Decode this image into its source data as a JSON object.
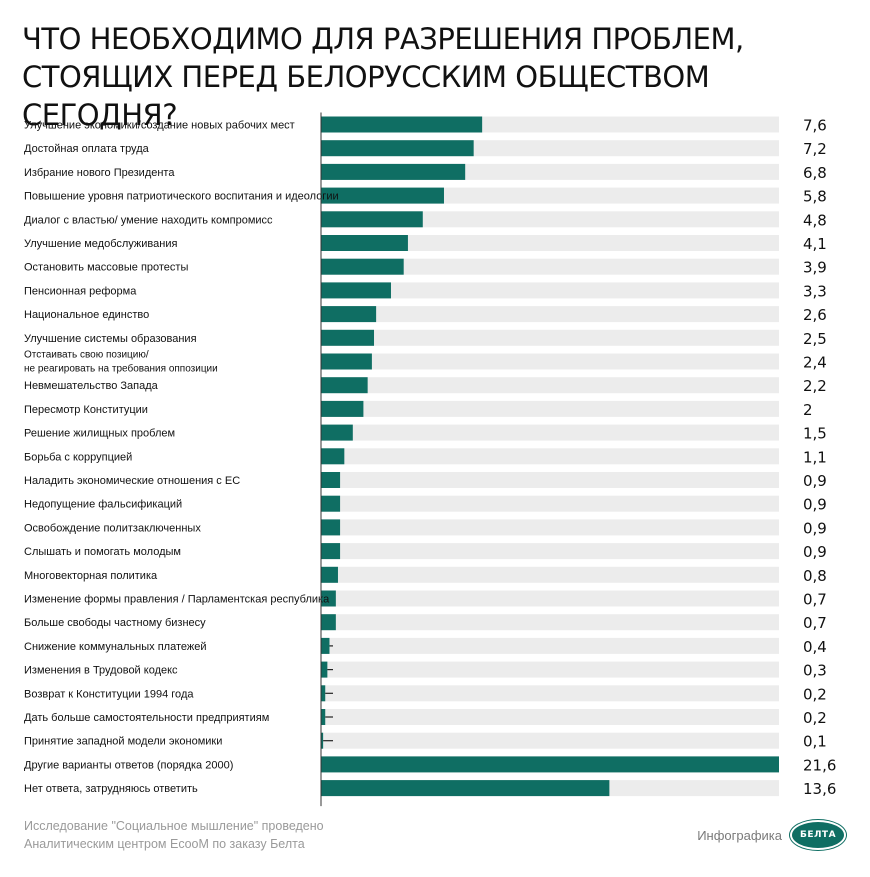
{
  "title_line1": "ЧТО НЕОБХОДИМО ДЛЯ РАЗРЕШЕНИЯ ПРОБЛЕМ,",
  "title_line2": "СТОЯЩИХ ПЕРЕД БЕЛОРУССКИМ ОБЩЕСТВОМ СЕГОДНЯ?",
  "footer": {
    "line1": "Исследование \"Социальное мышление\" проведено",
    "line2": "Аналитическим центром EcooM по заказу Белта",
    "brand_label": "Инфографика",
    "logo_text": "БЕЛТА"
  },
  "colors": {
    "bar": "#0f6e63",
    "track": "#ececec",
    "axis": "#333333"
  },
  "chart_data": {
    "type": "bar",
    "orientation": "horizontal",
    "xlim": [
      0,
      21.6
    ],
    "categories": [
      [
        "Улучшение экономики/создание новых рабочих мест"
      ],
      [
        "Достойная оплата труда"
      ],
      [
        "Избрание нового Президента"
      ],
      [
        "Повышение уровня патриотического воспитания и идеологии"
      ],
      [
        "Диалог с властью/ умение находить компромисс"
      ],
      [
        "Улучшение медобслуживания"
      ],
      [
        "Остановить массовые протесты"
      ],
      [
        "Пенсионная реформа"
      ],
      [
        "Национальное единство"
      ],
      [
        "Улучшение системы образования"
      ],
      [
        "Отстаивать свою позицию/",
        "не реагировать на требования оппозиции"
      ],
      [
        "Невмешательство Запада"
      ],
      [
        "Пересмотр Конституции"
      ],
      [
        "Решение жилищных проблем"
      ],
      [
        "Борьба с коррупцией"
      ],
      [
        "Наладить экономические отношения с ЕС"
      ],
      [
        "Недопущение фальсификаций"
      ],
      [
        "Освобождение политзаключенных"
      ],
      [
        "Слышать и помогать молодым"
      ],
      [
        "Многовекторная политика"
      ],
      [
        "Изменение формы правления / Парламентская республика"
      ],
      [
        "Больше свободы частному бизнесу"
      ],
      [
        "Снижение коммунальных платежей"
      ],
      [
        "Изменения в Трудовой кодекс"
      ],
      [
        "Возврат к Конституции 1994 года"
      ],
      [
        "Дать больше самостоятельности предприятиям"
      ],
      [
        "Принятие западной модели экономики"
      ],
      [
        "Другие варианты ответов (порядка 2000)"
      ],
      [
        "Нет ответа, затрудняюсь ответить"
      ]
    ],
    "values": [
      7.6,
      7.2,
      6.8,
      5.8,
      4.8,
      4.1,
      3.9,
      3.3,
      2.6,
      2.5,
      2.4,
      2.2,
      2,
      1.5,
      1.1,
      0.9,
      0.9,
      0.9,
      0.9,
      0.8,
      0.7,
      0.7,
      0.4,
      0.3,
      0.2,
      0.2,
      0.1,
      21.6,
      13.6
    ],
    "value_labels": [
      "7,6",
      "7,2",
      "6,8",
      "5,8",
      "4,8",
      "4,1",
      "3,9",
      "3,3",
      "2,6",
      "2,5",
      "2,4",
      "2,2",
      "2",
      "1,5",
      "1,1",
      "0,9",
      "0,9",
      "0,9",
      "0,9",
      "0,8",
      "0,7",
      "0,7",
      "0,4",
      "0,3",
      "0,2",
      "0,2",
      "0,1",
      "21,6",
      "13,6"
    ]
  }
}
